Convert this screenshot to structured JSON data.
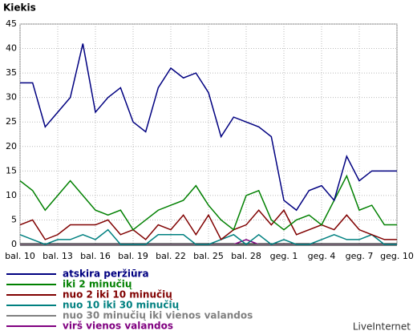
{
  "chart_data": {
    "type": "line",
    "title": "Kiekis",
    "credit": "LiveInternet",
    "categories": [
      "bal. 10",
      null,
      null,
      "bal. 13",
      null,
      null,
      "bal. 16",
      null,
      null,
      "bal. 19",
      null,
      null,
      "bal. 22",
      null,
      null,
      "bal. 25",
      null,
      null,
      "bal. 28",
      null,
      null,
      "geg. 1",
      null,
      null,
      "geg. 4",
      null,
      null,
      "geg. 7",
      null,
      null,
      "geg. 10"
    ],
    "series": [
      {
        "name": "atskira peržiūra",
        "color": "#000080",
        "values": [
          33,
          33,
          24,
          27,
          30,
          41,
          27,
          30,
          32,
          25,
          23,
          32,
          36,
          34,
          35,
          31,
          22,
          26,
          25,
          24,
          22,
          9,
          7,
          11,
          12,
          9,
          18,
          13,
          15,
          15,
          15
        ]
      },
      {
        "name": "iki 2 minučių",
        "color": "#008000",
        "values": [
          13,
          11,
          7,
          10,
          13,
          10,
          7,
          6,
          7,
          3,
          5,
          7,
          8,
          9,
          12,
          8,
          5,
          3,
          10,
          11,
          5,
          3,
          5,
          6,
          4,
          9,
          14,
          7,
          8,
          4,
          4
        ]
      },
      {
        "name": "nuo 2 iki 10 minučių",
        "color": "#800000",
        "values": [
          4,
          5,
          1,
          2,
          4,
          4,
          4,
          5,
          2,
          3,
          1,
          4,
          3,
          6,
          2,
          6,
          1,
          3,
          4,
          7,
          4,
          7,
          2,
          3,
          4,
          3,
          6,
          3,
          2,
          1,
          1
        ]
      },
      {
        "name": "nuo 10 iki 30 minučių",
        "color": "#008080",
        "values": [
          2,
          1,
          0,
          1,
          1,
          2,
          1,
          3,
          0,
          0,
          0,
          2,
          2,
          2,
          0,
          0,
          1,
          2,
          0,
          2,
          0,
          1,
          0,
          0,
          1,
          2,
          1,
          1,
          2,
          0,
          0
        ]
      },
      {
        "name": "nuo 30 minučių iki vienos valandos",
        "color": "#808080",
        "values": [
          0,
          0,
          0,
          0,
          0,
          0,
          0,
          0,
          0,
          0,
          0,
          0,
          0,
          0,
          0,
          0,
          0,
          0,
          0,
          0,
          0,
          0,
          0,
          0,
          0,
          0,
          0,
          0,
          0,
          0,
          0
        ]
      },
      {
        "name": "virš vienos valandos",
        "color": "#800080",
        "values": [
          0,
          0,
          0,
          0,
          0,
          0,
          0,
          0,
          0,
          0,
          0,
          0,
          0,
          0,
          0,
          0,
          0,
          0,
          1,
          0,
          0,
          0,
          0,
          0,
          0,
          0,
          0,
          0,
          0,
          0,
          0
        ]
      }
    ],
    "ylim": [
      0,
      45
    ],
    "yticks": [
      0,
      5,
      10,
      15,
      20,
      25,
      30,
      35,
      40,
      45
    ],
    "grid": true
  }
}
